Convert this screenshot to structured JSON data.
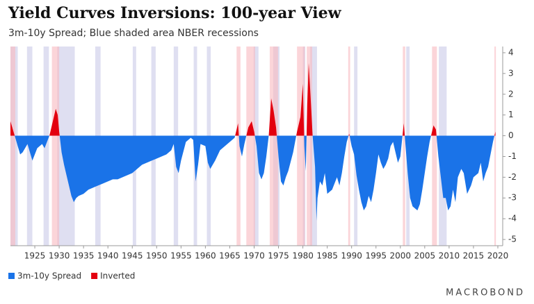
{
  "chart_data": {
    "type": "area",
    "title": "Yield Curves Inversions: 100-year View",
    "subtitle": "3m-10y Spread; Blue shaded area NBER recessions",
    "brand": "MACROBOND",
    "legend": [
      {
        "name": "3m-10y Spread",
        "color": "#1a73e8"
      },
      {
        "name": "Inverted",
        "color": "#e3000f"
      }
    ],
    "recession_color": "#c9c9e8",
    "inversion_color": "#f9b9c0",
    "recessions": [
      [
        1920.0,
        1921.5
      ],
      [
        1923.4,
        1924.5
      ],
      [
        1926.8,
        1927.9
      ],
      [
        1929.6,
        1933.2
      ],
      [
        1937.4,
        1938.5
      ],
      [
        1945.1,
        1945.8
      ],
      [
        1948.9,
        1949.8
      ],
      [
        1953.5,
        1954.4
      ],
      [
        1957.6,
        1958.3
      ],
      [
        1960.3,
        1961.1
      ],
      [
        1969.9,
        1970.9
      ],
      [
        1973.9,
        1975.2
      ],
      [
        1980.0,
        1980.5
      ],
      [
        1981.5,
        1982.9
      ],
      [
        1990.5,
        1991.2
      ],
      [
        2001.2,
        2001.9
      ],
      [
        2007.9,
        2009.5
      ]
    ],
    "inversions": [
      [
        1920.0,
        1921.0
      ],
      [
        1928.5,
        1930.0
      ],
      [
        1966.4,
        1967.2
      ],
      [
        1968.4,
        1970.2
      ],
      [
        1973.2,
        1974.9
      ],
      [
        1978.8,
        1980.4
      ],
      [
        1980.8,
        1981.9
      ],
      [
        1989.3,
        1989.7
      ],
      [
        2000.5,
        2001.0
      ],
      [
        2006.5,
        2007.5
      ],
      [
        2019.3,
        2019.6
      ]
    ],
    "x": [
      1920.0,
      1920.5,
      1921.0,
      1921.5,
      1922.0,
      1922.5,
      1923.0,
      1923.5,
      1924.0,
      1924.5,
      1925.0,
      1925.5,
      1926.0,
      1926.5,
      1927.0,
      1927.5,
      1928.0,
      1928.5,
      1929.0,
      1929.3,
      1929.7,
      1930.0,
      1930.5,
      1931.0,
      1931.5,
      1932.0,
      1932.5,
      1933.0,
      1933.5,
      1934.0,
      1935.0,
      1936.0,
      1937.0,
      1938.0,
      1939.0,
      1940.0,
      1941.0,
      1942.0,
      1943.0,
      1944.0,
      1945.0,
      1946.0,
      1947.0,
      1948.0,
      1949.0,
      1950.0,
      1951.0,
      1952.0,
      1953.0,
      1953.5,
      1954.0,
      1954.5,
      1955.0,
      1956.0,
      1957.0,
      1957.5,
      1958.0,
      1958.5,
      1959.0,
      1960.0,
      1960.5,
      1961.0,
      1962.0,
      1963.0,
      1964.0,
      1965.0,
      1966.0,
      1966.7,
      1967.0,
      1967.5,
      1968.0,
      1968.8,
      1969.5,
      1970.0,
      1970.5,
      1971.0,
      1971.5,
      1972.0,
      1972.5,
      1973.0,
      1973.5,
      1974.0,
      1974.5,
      1975.0,
      1975.5,
      1976.0,
      1976.5,
      1977.0,
      1978.0,
      1978.8,
      1979.5,
      1980.0,
      1980.3,
      1980.6,
      1980.9,
      1981.2,
      1981.6,
      1982.0,
      1982.5,
      1982.8,
      1983.0,
      1983.5,
      1984.0,
      1984.5,
      1985.0,
      1986.0,
      1987.0,
      1987.5,
      1988.0,
      1988.5,
      1989.0,
      1989.5,
      1990.0,
      1990.5,
      1991.0,
      1991.5,
      1992.0,
      1992.5,
      1993.0,
      1993.5,
      1994.0,
      1994.5,
      1995.0,
      1995.5,
      1996.0,
      1996.5,
      1997.0,
      1997.5,
      1998.0,
      1998.5,
      1999.0,
      1999.5,
      2000.0,
      2000.7,
      2001.0,
      2001.5,
      2002.0,
      2002.5,
      2003.0,
      2003.5,
      2004.0,
      2004.5,
      2005.0,
      2005.5,
      2006.0,
      2006.8,
      2007.3,
      2007.8,
      2008.3,
      2008.8,
      2009.3,
      2009.8,
      2010.3,
      2010.8,
      2011.3,
      2011.8,
      2012.5,
      2013.0,
      2013.7,
      2014.5,
      2015.0,
      2016.0,
      2016.5,
      2017.0,
      2017.5,
      2018.0,
      2018.5,
      2019.0,
      2019.5
    ],
    "values": [
      0.7,
      0.3,
      -0.1,
      -0.5,
      -0.9,
      -0.8,
      -0.6,
      -0.4,
      -0.8,
      -1.2,
      -0.9,
      -0.6,
      -0.5,
      -0.4,
      -0.6,
      -0.3,
      0.0,
      0.5,
      1.0,
      1.3,
      1.0,
      0.2,
      -0.8,
      -1.4,
      -1.9,
      -2.4,
      -2.9,
      -3.2,
      -3.0,
      -2.9,
      -2.8,
      -2.6,
      -2.5,
      -2.4,
      -2.3,
      -2.2,
      -2.1,
      -2.1,
      -2.0,
      -1.9,
      -1.8,
      -1.6,
      -1.4,
      -1.3,
      -1.2,
      -1.1,
      -1.0,
      -0.9,
      -0.7,
      -0.4,
      -1.5,
      -1.8,
      -1.2,
      -0.3,
      -0.1,
      -0.2,
      -2.2,
      -1.4,
      -0.4,
      -0.5,
      -1.3,
      -1.6,
      -1.2,
      -0.7,
      -0.5,
      -0.3,
      -0.1,
      0.6,
      -0.5,
      -1.0,
      -0.4,
      0.4,
      0.7,
      0.2,
      -0.5,
      -1.8,
      -2.1,
      -1.8,
      -1.0,
      0.0,
      1.8,
      1.2,
      0.4,
      -1.0,
      -2.2,
      -2.4,
      -2.0,
      -1.7,
      -0.8,
      0.2,
      0.9,
      2.5,
      -0.5,
      -1.7,
      1.5,
      3.5,
      1.8,
      0.0,
      -1.5,
      -4.1,
      -3.0,
      -2.2,
      -2.4,
      -1.8,
      -2.8,
      -2.6,
      -2.0,
      -2.4,
      -1.8,
      -1.0,
      -0.3,
      0.1,
      -0.5,
      -0.9,
      -1.9,
      -2.6,
      -3.2,
      -3.6,
      -3.4,
      -2.9,
      -3.2,
      -2.6,
      -1.8,
      -0.9,
      -1.3,
      -1.6,
      -1.4,
      -1.1,
      -0.5,
      -0.3,
      -0.8,
      -1.3,
      -1.0,
      0.6,
      -0.3,
      -1.8,
      -3.0,
      -3.4,
      -3.5,
      -3.6,
      -3.3,
      -2.6,
      -1.8,
      -1.0,
      -0.3,
      0.5,
      0.3,
      -1.0,
      -2.0,
      -3.0,
      -3.0,
      -3.6,
      -3.4,
      -2.6,
      -3.2,
      -2.0,
      -1.6,
      -1.8,
      -2.8,
      -2.4,
      -2.0,
      -1.8,
      -1.3,
      -2.2,
      -1.8,
      -1.5,
      -0.9,
      -0.3,
      0.2
    ],
    "xlim": [
      1920,
      2021
    ],
    "xticks": [
      1925,
      1930,
      1935,
      1940,
      1945,
      1950,
      1955,
      1960,
      1965,
      1970,
      1975,
      1980,
      1985,
      1990,
      1995,
      2000,
      2005,
      2010,
      2015,
      2020
    ],
    "ylim": [
      -5.3,
      4.3
    ],
    "yticks": [
      -5,
      -4,
      -3,
      -2,
      -1,
      0,
      1,
      2,
      3,
      4
    ]
  }
}
